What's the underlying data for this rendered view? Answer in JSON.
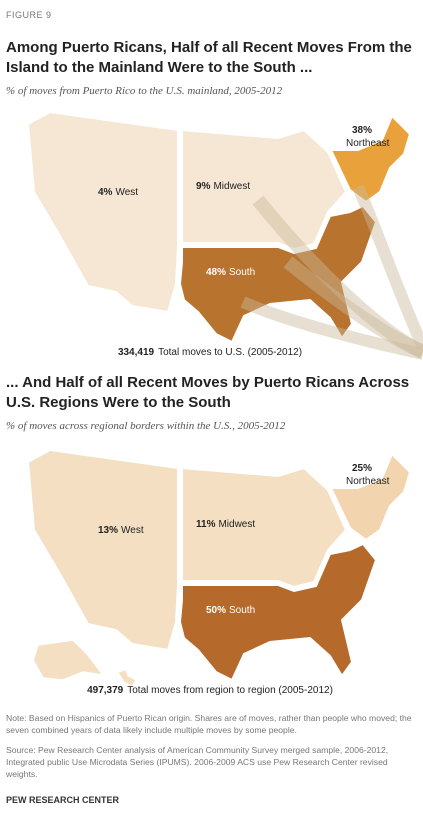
{
  "figure_label": "FIGURE 9",
  "chart_data": [
    {
      "type": "map",
      "title": "Among Puerto Ricans, Half of all Recent Moves From the Island to the Mainland Were to the South ...",
      "subtitle": "% of moves from Puerto Rico to the U.S. mainland, 2005-2012",
      "categories": [
        "West",
        "Midwest",
        "South",
        "Northeast"
      ],
      "values": [
        4,
        9,
        48,
        38
      ],
      "value_labels": [
        "4%",
        "9%",
        "48%",
        "38%"
      ],
      "colors": [
        "#f6e7d4",
        "#f6e7d4",
        "#b8732f",
        "#e9a23b"
      ],
      "total": "334,419",
      "total_text": "Total moves to U.S. (2005-2012)"
    },
    {
      "type": "map",
      "title": "... And Half of all Recent Moves by Puerto Ricans Across U.S. Regions Were to the South",
      "subtitle": "% of moves across regional borders within the U.S., 2005-2012",
      "categories": [
        "West",
        "Midwest",
        "South",
        "Northeast"
      ],
      "values": [
        13,
        11,
        50,
        25
      ],
      "value_labels": [
        "13%",
        "11%",
        "50%",
        "25%"
      ],
      "colors": [
        "#f4dfc2",
        "#f4dfc2",
        "#b5692b",
        "#f2d5ae"
      ],
      "total": "497,379",
      "total_text": "Total moves from region to region (2005-2012)"
    }
  ],
  "note": "Note: Based on Hispanics of Puerto Rican origin. Shares are of moves, rather than people who moved; the seven combined years of data likely include multiple moves by some people.",
  "source": "Source: Pew Research Center analysis of American Community Survey merged sample, 2006-2012, Integrated public Use Microdata Series (IPUMS). 2006-2009 ACS use Pew Research Center revised weights.",
  "footer": "PEW RESEARCH CENTER"
}
